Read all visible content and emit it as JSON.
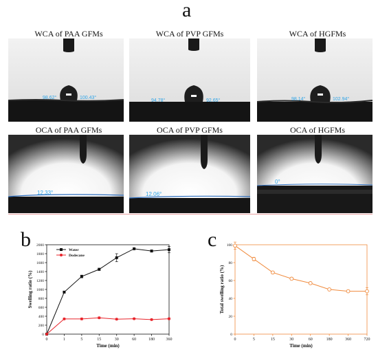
{
  "figure": {
    "label_a": "a",
    "label_b": "b",
    "label_c": "c"
  },
  "photos": {
    "wca": [
      {
        "title": "WCA of PAA GFMs",
        "left_angle": "98.62°",
        "right_angle": "100.43°"
      },
      {
        "title": "WCA of PVP GFMs",
        "left_angle": "94.78°",
        "right_angle": "92.65°"
      },
      {
        "title": "WCA of HGFMs",
        "left_angle": "98.14°",
        "right_angle": "102.94°"
      }
    ],
    "oca": [
      {
        "title": "OCA of PAA GFMs",
        "angle": "12.33°"
      },
      {
        "title": "OCA of PVP GFMs",
        "angle": "12.06°"
      },
      {
        "title": "OCA of HGFMs",
        "angle": "0°"
      }
    ]
  },
  "chart_data": [
    {
      "type": "line",
      "xlabel": "Time (min)",
      "ylabel": "Swelling ratio (%)",
      "categories": [
        "0",
        "1",
        "5",
        "15",
        "30",
        "60",
        "180",
        "360"
      ],
      "ylim": [
        0,
        2000
      ],
      "yticks": [
        0,
        200,
        400,
        600,
        800,
        1000,
        1200,
        1400,
        1600,
        1800,
        2000
      ],
      "legend_position": "top-left",
      "series": [
        {
          "name": "Water",
          "color": "#111111",
          "marker": "square",
          "values": [
            0,
            940,
            1290,
            1450,
            1710,
            1910,
            1860,
            1890
          ],
          "errors": [
            0,
            20,
            30,
            25,
            90,
            10,
            25,
            70
          ]
        },
        {
          "name": "Dodecane",
          "color": "#e8232a",
          "marker": "circle",
          "values": [
            0,
            340,
            340,
            365,
            335,
            345,
            325,
            345
          ],
          "errors": [
            0,
            15,
            20,
            20,
            15,
            15,
            15,
            20
          ]
        }
      ]
    },
    {
      "type": "line",
      "xlabel": "Time (min)",
      "ylabel": "Total swelling ratio (%)",
      "categories": [
        "0",
        "5",
        "15",
        "30",
        "60",
        "180",
        "360",
        "720"
      ],
      "ylim": [
        0,
        100
      ],
      "yticks": [
        0,
        20,
        40,
        60,
        80,
        100
      ],
      "series": [
        {
          "name": "",
          "color": "#f08a3c",
          "marker": "circle-open",
          "values": [
            99,
            84,
            69,
            62,
            57,
            50,
            48,
            48
          ],
          "errors": [
            4,
            2,
            1.5,
            1.5,
            1.5,
            1.5,
            1.5,
            4
          ]
        }
      ]
    }
  ]
}
